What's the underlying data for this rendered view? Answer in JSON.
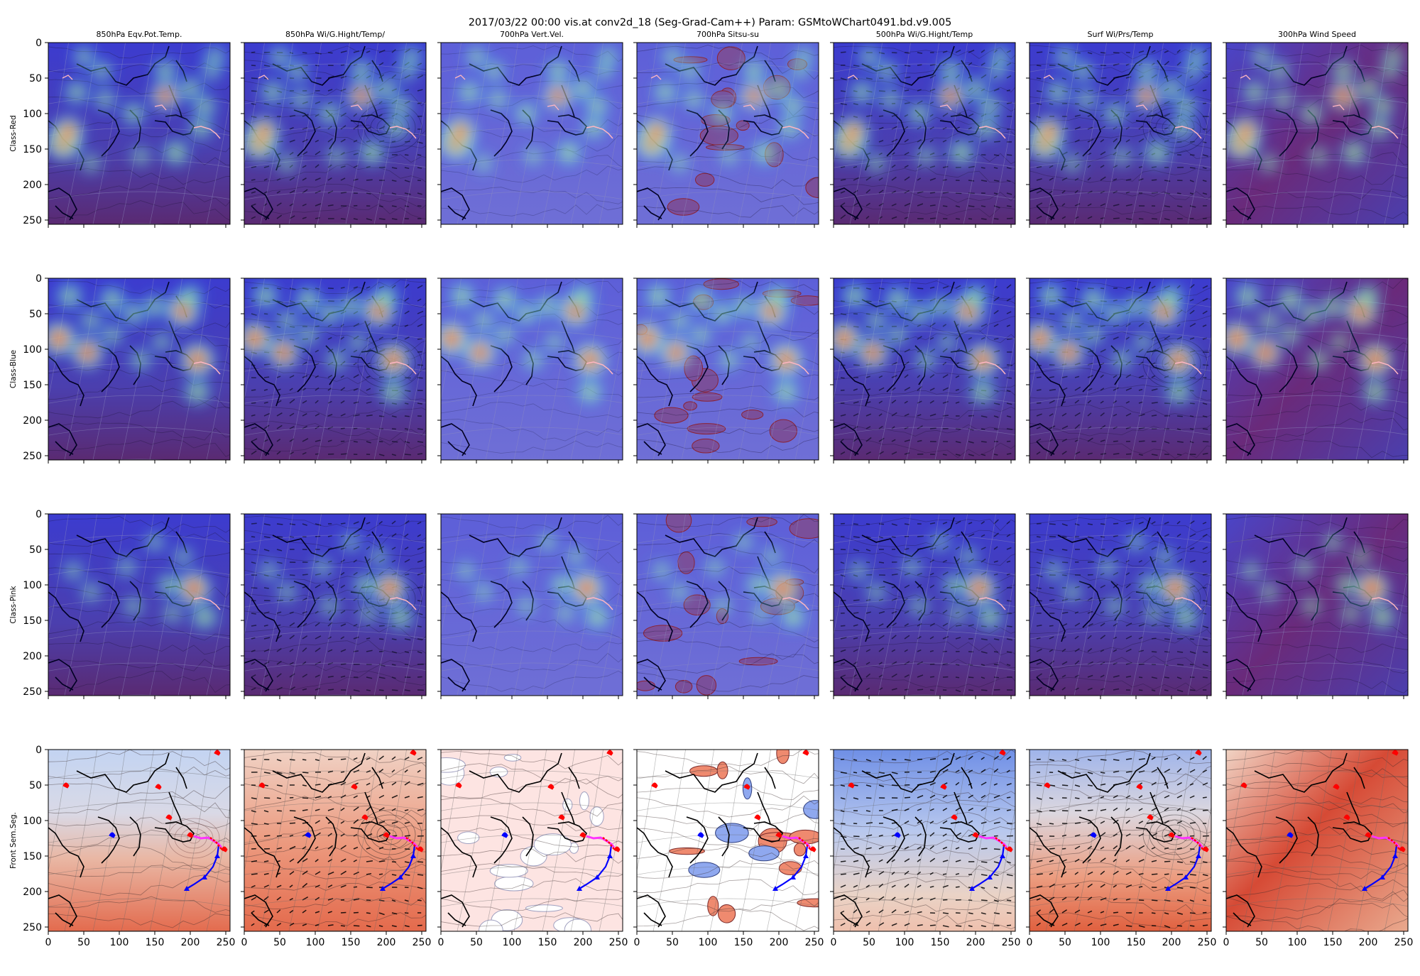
{
  "title": "2017/03/22 00:00 vis.at conv2d_18 (Seg-Grad-Cam++) Param: GSMtoWChart0491.bd.v9.005",
  "chart_data": {
    "type": "heatmap",
    "layout": "grid",
    "rows": 4,
    "cols": 7,
    "column_titles": [
      "850hPa Eqv.Pot.Temp.",
      "850hPa Wi/G.Hight/Temp/",
      "700hPa Vert.Vel.",
      "700hPa Sitsu-su",
      "500hPa Wi/G.Hight/Temp",
      "Surf Wi/Prs/Temp",
      "300hPa Wind Speed"
    ],
    "row_labels": [
      "Class-Red",
      "Class-Blue",
      "Class-Pink",
      "Front Sem.Seg."
    ],
    "xlim": [
      0,
      256
    ],
    "ylim": [
      256,
      0
    ],
    "xticks": [
      0,
      50,
      100,
      150,
      200,
      250
    ],
    "yticks": [
      0,
      50,
      100,
      150,
      200,
      250
    ],
    "hotspots": [
      [
        [
          22,
          140,
          1.0
        ],
        [
          28,
          125,
          0.7
        ],
        [
          40,
          70,
          0.5
        ],
        [
          75,
          40,
          0.4
        ],
        [
          80,
          80,
          0.4
        ],
        [
          120,
          100,
          0.5
        ],
        [
          165,
          75,
          0.7
        ],
        [
          165,
          40,
          0.5
        ],
        [
          200,
          65,
          0.5
        ],
        [
          220,
          90,
          0.5
        ],
        [
          215,
          120,
          0.5
        ],
        [
          180,
          155,
          0.6
        ],
        [
          235,
          20,
          0.4
        ],
        [
          130,
          160,
          0.3
        ],
        [
          60,
          170,
          0.3
        ],
        [
          50,
          20,
          0.4
        ],
        [
          230,
          40,
          0.3
        ]
      ],
      [
        [
          15,
          85,
          0.9
        ],
        [
          55,
          105,
          0.8
        ],
        [
          30,
          25,
          0.6
        ],
        [
          90,
          30,
          0.6
        ],
        [
          120,
          50,
          0.5
        ],
        [
          150,
          40,
          0.5
        ],
        [
          190,
          45,
          0.9
        ],
        [
          200,
          25,
          0.5
        ],
        [
          210,
          115,
          0.9
        ],
        [
          210,
          160,
          0.6
        ],
        [
          130,
          115,
          0.4
        ],
        [
          90,
          80,
          0.4
        ],
        [
          160,
          90,
          0.3
        ],
        [
          60,
          60,
          0.4
        ]
      ],
      [
        [
          205,
          105,
          0.9
        ],
        [
          220,
          145,
          0.6
        ],
        [
          170,
          100,
          0.5
        ],
        [
          120,
          130,
          0.3
        ],
        [
          60,
          110,
          0.3
        ],
        [
          35,
          80,
          0.3
        ],
        [
          150,
          40,
          0.3
        ],
        [
          110,
          75,
          0.3
        ],
        [
          190,
          60,
          0.3
        ],
        [
          175,
          140,
          0.3
        ]
      ],
      []
    ],
    "fronts": {
      "warm_front_magenta": [
        [
          205,
          122
        ],
        [
          215,
          125
        ],
        [
          225,
          124
        ],
        [
          232,
          128
        ],
        [
          240,
          133
        ],
        [
          244,
          138
        ]
      ],
      "cold_front_blue": [
        [
          240,
          135
        ],
        [
          238,
          150
        ],
        [
          232,
          165
        ],
        [
          220,
          180
        ],
        [
          205,
          190
        ],
        [
          195,
          196
        ]
      ],
      "red_markers": [
        [
          25,
          48
        ],
        [
          155,
          50
        ],
        [
          170,
          93
        ],
        [
          200,
          118
        ],
        [
          248,
          138
        ],
        [
          238,
          2
        ]
      ],
      "blue_markers": [
        [
          90,
          118
        ]
      ]
    }
  }
}
